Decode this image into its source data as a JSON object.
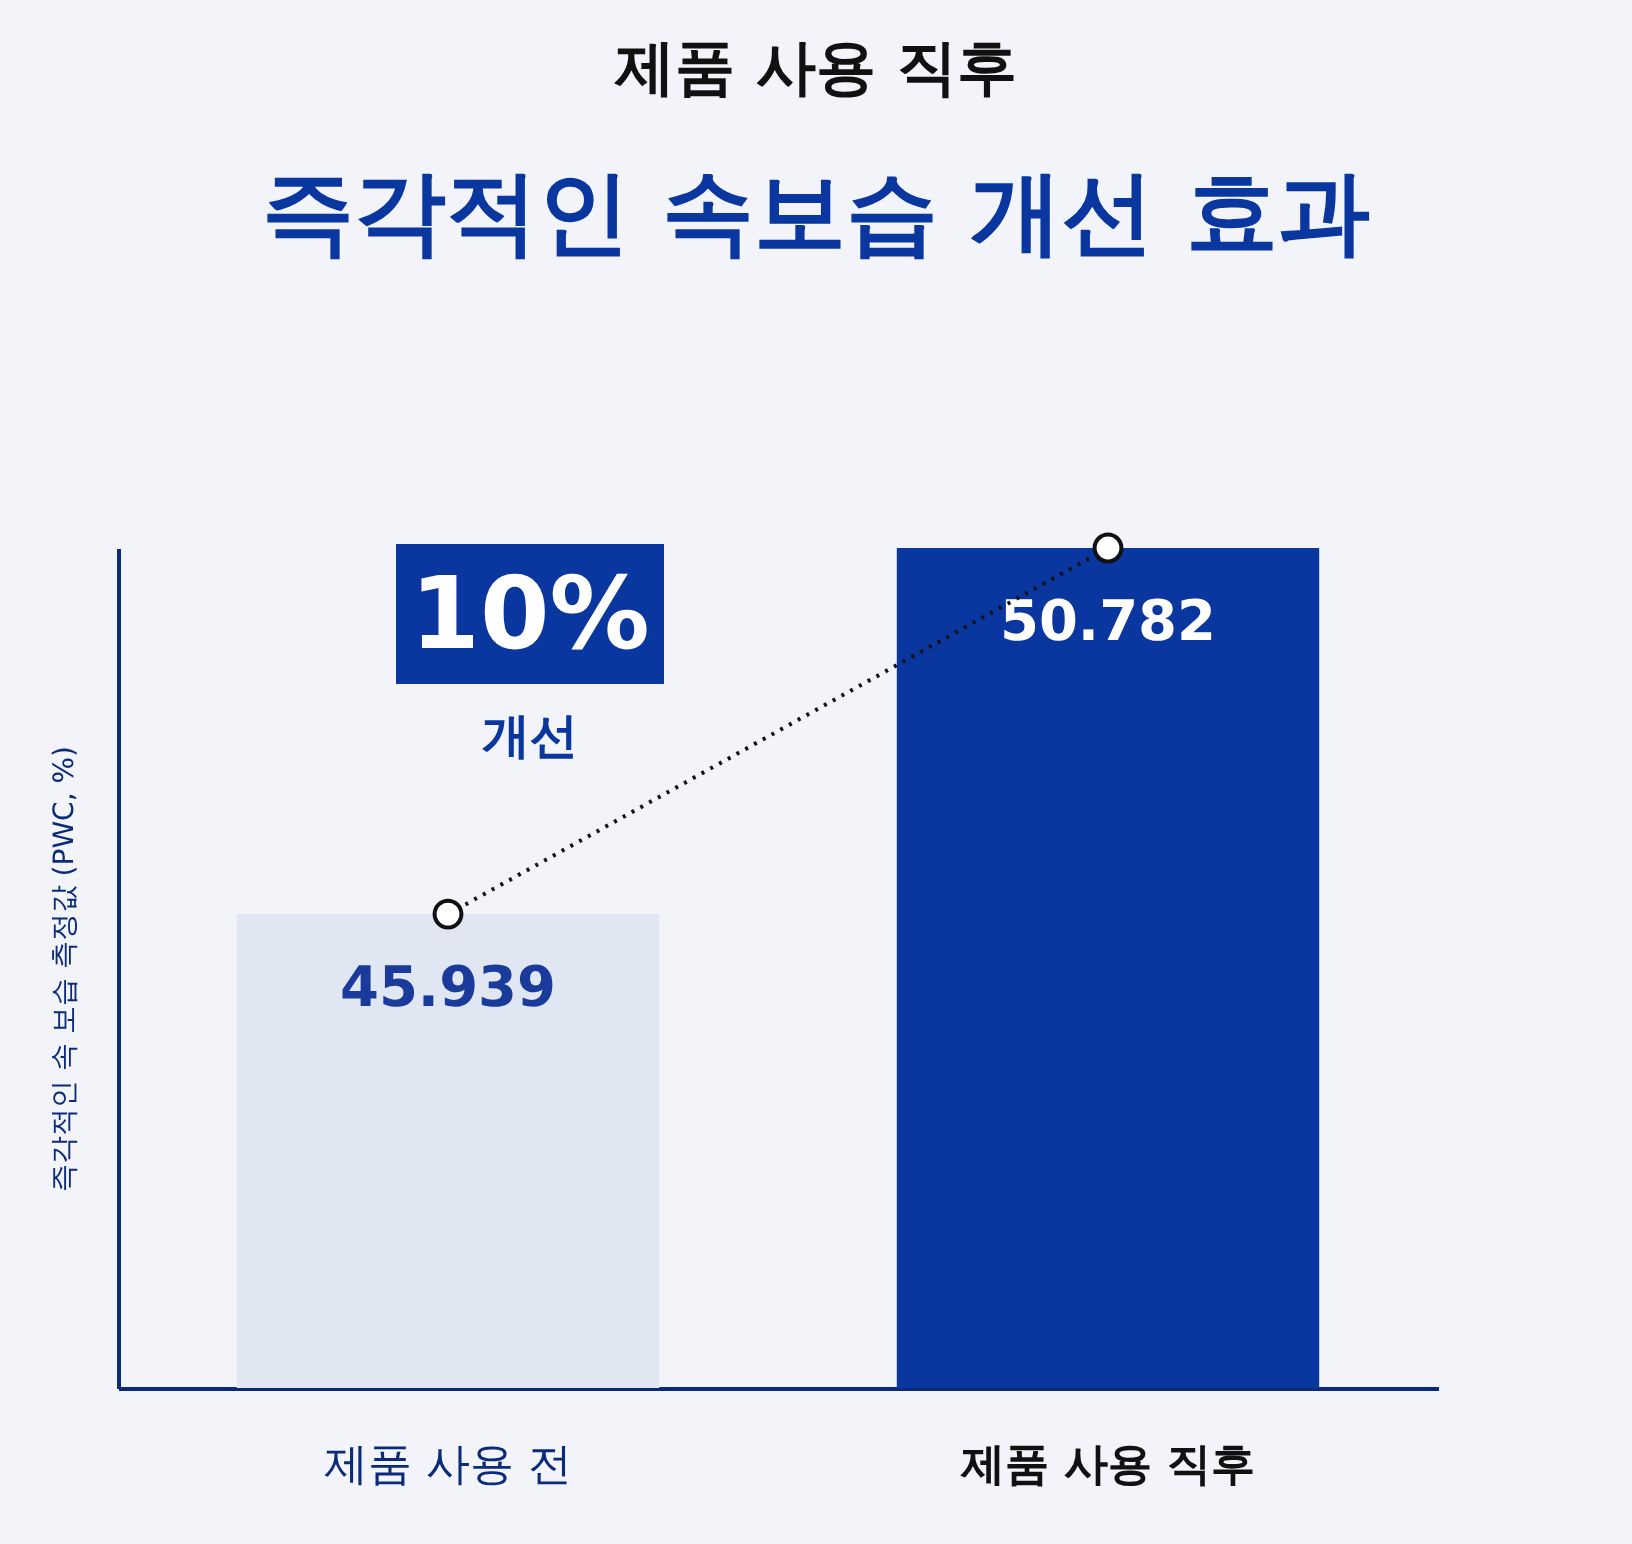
{
  "chart_data": {
    "type": "bar",
    "subtitle": "제품 사용 직후",
    "title": "즉각적인 속보습 개선 효과",
    "ylabel": "즉각적인 속 보습 측정값 (PWC, %)",
    "categories": [
      "제품 사용 전",
      "제품 사용 직후"
    ],
    "series": [
      {
        "colors": [
          "#e1e6f3",
          "#0a36a0"
        ],
        "values": [
          45.939,
          50.782
        ],
        "value_labels": [
          "45.939",
          "50.782"
        ]
      },
      {
        "type": "line",
        "color": "#111111",
        "values": [
          45.939,
          50.782
        ]
      }
    ],
    "marker": "circle",
    "line_style": "dotted",
    "ylim": [
      39.67,
      50.782
    ],
    "tick_labels": "x",
    "annotations": [
      "10%",
      "개선"
    ]
  }
}
